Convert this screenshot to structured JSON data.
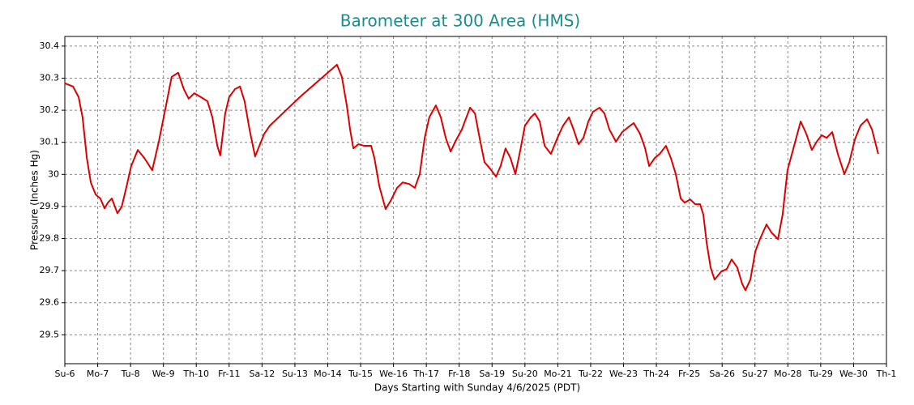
{
  "chart_data": {
    "type": "line",
    "title": "Barometer at 300 Area (HMS)",
    "x_label": "Days Starting with Sunday 4/6/2025 (PDT)",
    "y_label": "Pressure (Inches Hg)",
    "xlim": [
      0,
      25
    ],
    "xticks": [
      {
        "value": 0,
        "label": "Su-6"
      },
      {
        "value": 1,
        "label": "Mo-7"
      },
      {
        "value": 2,
        "label": "Tu-8"
      },
      {
        "value": 3,
        "label": "We-9"
      },
      {
        "value": 4,
        "label": "Th-10"
      },
      {
        "value": 5,
        "label": "Fr-11"
      },
      {
        "value": 6,
        "label": "Sa-12"
      },
      {
        "value": 7,
        "label": "Su-13"
      },
      {
        "value": 8,
        "label": "Mo-14"
      },
      {
        "value": 9,
        "label": "Tu-15"
      },
      {
        "value": 10,
        "label": "We-16"
      },
      {
        "value": 11,
        "label": "Th-17"
      },
      {
        "value": 12,
        "label": "Fr-18"
      },
      {
        "value": 13,
        "label": "Sa-19"
      },
      {
        "value": 14,
        "label": "Su-20"
      },
      {
        "value": 15,
        "label": "Mo-21"
      },
      {
        "value": 16,
        "label": "Tu-22"
      },
      {
        "value": 17,
        "label": "We-23"
      },
      {
        "value": 18,
        "label": "Th-24"
      },
      {
        "value": 19,
        "label": "Fr-25"
      },
      {
        "value": 20,
        "label": "Sa-26"
      },
      {
        "value": 21,
        "label": "Su-27"
      },
      {
        "value": 22,
        "label": "Mo-28"
      },
      {
        "value": 23,
        "label": "Tu-29"
      },
      {
        "value": 24,
        "label": "We-30"
      },
      {
        "value": 25,
        "label": "Th-1"
      }
    ],
    "ylim": [
      29.41,
      30.43
    ],
    "yticks": [
      29.5,
      29.6,
      29.7,
      29.8,
      29.9,
      30,
      30.1,
      30.2,
      30.3,
      30.4
    ],
    "grid": true,
    "title_color": "#1a8c8c",
    "series": [
      {
        "color": "#dd0000",
        "x": [
          0,
          0.25,
          0.42,
          0.54,
          0.67,
          0.79,
          0.94,
          1.08,
          1.21,
          1.31,
          1.43,
          1.6,
          1.73,
          1.85,
          2.02,
          2.22,
          2.42,
          2.66,
          2.86,
          3.08,
          3.25,
          3.45,
          3.62,
          3.77,
          3.94,
          4.14,
          4.34,
          4.49,
          4.64,
          4.73,
          4.88,
          5.0,
          5.18,
          5.33,
          5.47,
          5.62,
          5.79,
          5.92,
          6.07,
          6.24,
          7.15,
          8.28,
          8.43,
          8.58,
          8.68,
          8.78,
          8.93,
          9.12,
          9.32,
          9.42,
          9.57,
          9.76,
          9.91,
          10.11,
          10.28,
          10.48,
          10.65,
          10.8,
          10.95,
          11.09,
          11.29,
          11.44,
          11.59,
          11.74,
          11.88,
          12.08,
          12.33,
          12.48,
          12.62,
          12.77,
          12.94,
          13.12,
          13.26,
          13.41,
          13.56,
          13.71,
          13.86,
          14.0,
          14.18,
          14.3,
          14.45,
          14.6,
          14.79,
          14.99,
          15.16,
          15.34,
          15.48,
          15.63,
          15.78,
          15.93,
          16.07,
          16.27,
          16.42,
          16.57,
          16.77,
          16.96,
          17.14,
          17.31,
          17.5,
          17.65,
          17.78,
          17.95,
          18.1,
          18.29,
          18.44,
          18.59,
          18.74,
          18.86,
          19.03,
          19.18,
          19.33,
          19.43,
          19.53,
          19.65,
          19.77,
          19.97,
          20.14,
          20.29,
          20.46,
          20.61,
          20.71,
          20.86,
          21.01,
          21.15,
          21.35,
          21.5,
          21.7,
          21.84,
          21.99,
          22.19,
          22.39,
          22.56,
          22.73,
          22.88,
          23.03,
          23.18,
          23.35,
          23.52,
          23.72,
          23.87,
          24.04,
          24.21,
          24.41,
          24.56,
          24.75
        ],
        "values": [
          30.284,
          30.274,
          30.241,
          30.178,
          30.051,
          29.975,
          29.937,
          29.925,
          29.894,
          29.912,
          29.925,
          29.879,
          29.899,
          29.95,
          30.026,
          30.076,
          30.051,
          30.013,
          30.102,
          30.215,
          30.304,
          30.317,
          30.266,
          30.236,
          30.253,
          30.241,
          30.228,
          30.178,
          30.089,
          30.059,
          30.19,
          30.241,
          30.266,
          30.274,
          30.228,
          30.14,
          30.056,
          30.089,
          30.127,
          30.152,
          30.241,
          30.342,
          30.304,
          30.215,
          30.14,
          30.081,
          30.094,
          30.089,
          30.089,
          30.051,
          29.963,
          29.892,
          29.917,
          29.958,
          29.975,
          29.97,
          29.958,
          30.001,
          30.114,
          30.178,
          30.215,
          30.178,
          30.114,
          30.071,
          30.102,
          30.14,
          30.208,
          30.19,
          30.114,
          30.038,
          30.018,
          29.993,
          30.026,
          30.081,
          30.051,
          30.001,
          30.076,
          30.152,
          30.178,
          30.19,
          30.165,
          30.089,
          30.064,
          30.114,
          30.152,
          30.178,
          30.14,
          30.094,
          30.114,
          30.165,
          30.195,
          30.208,
          30.19,
          30.14,
          30.102,
          30.132,
          30.147,
          30.16,
          30.127,
          30.084,
          30.026,
          30.051,
          30.064,
          30.089,
          30.051,
          30.001,
          29.925,
          29.912,
          29.922,
          29.907,
          29.907,
          29.874,
          29.786,
          29.71,
          29.672,
          29.697,
          29.705,
          29.735,
          29.71,
          29.659,
          29.639,
          29.672,
          29.76,
          29.798,
          29.844,
          29.819,
          29.798,
          29.874,
          30.013,
          30.089,
          30.165,
          30.127,
          30.076,
          30.102,
          30.122,
          30.114,
          30.132,
          30.064,
          30.001,
          30.038,
          30.109,
          30.152,
          30.172,
          30.14,
          30.064
        ]
      }
    ]
  }
}
